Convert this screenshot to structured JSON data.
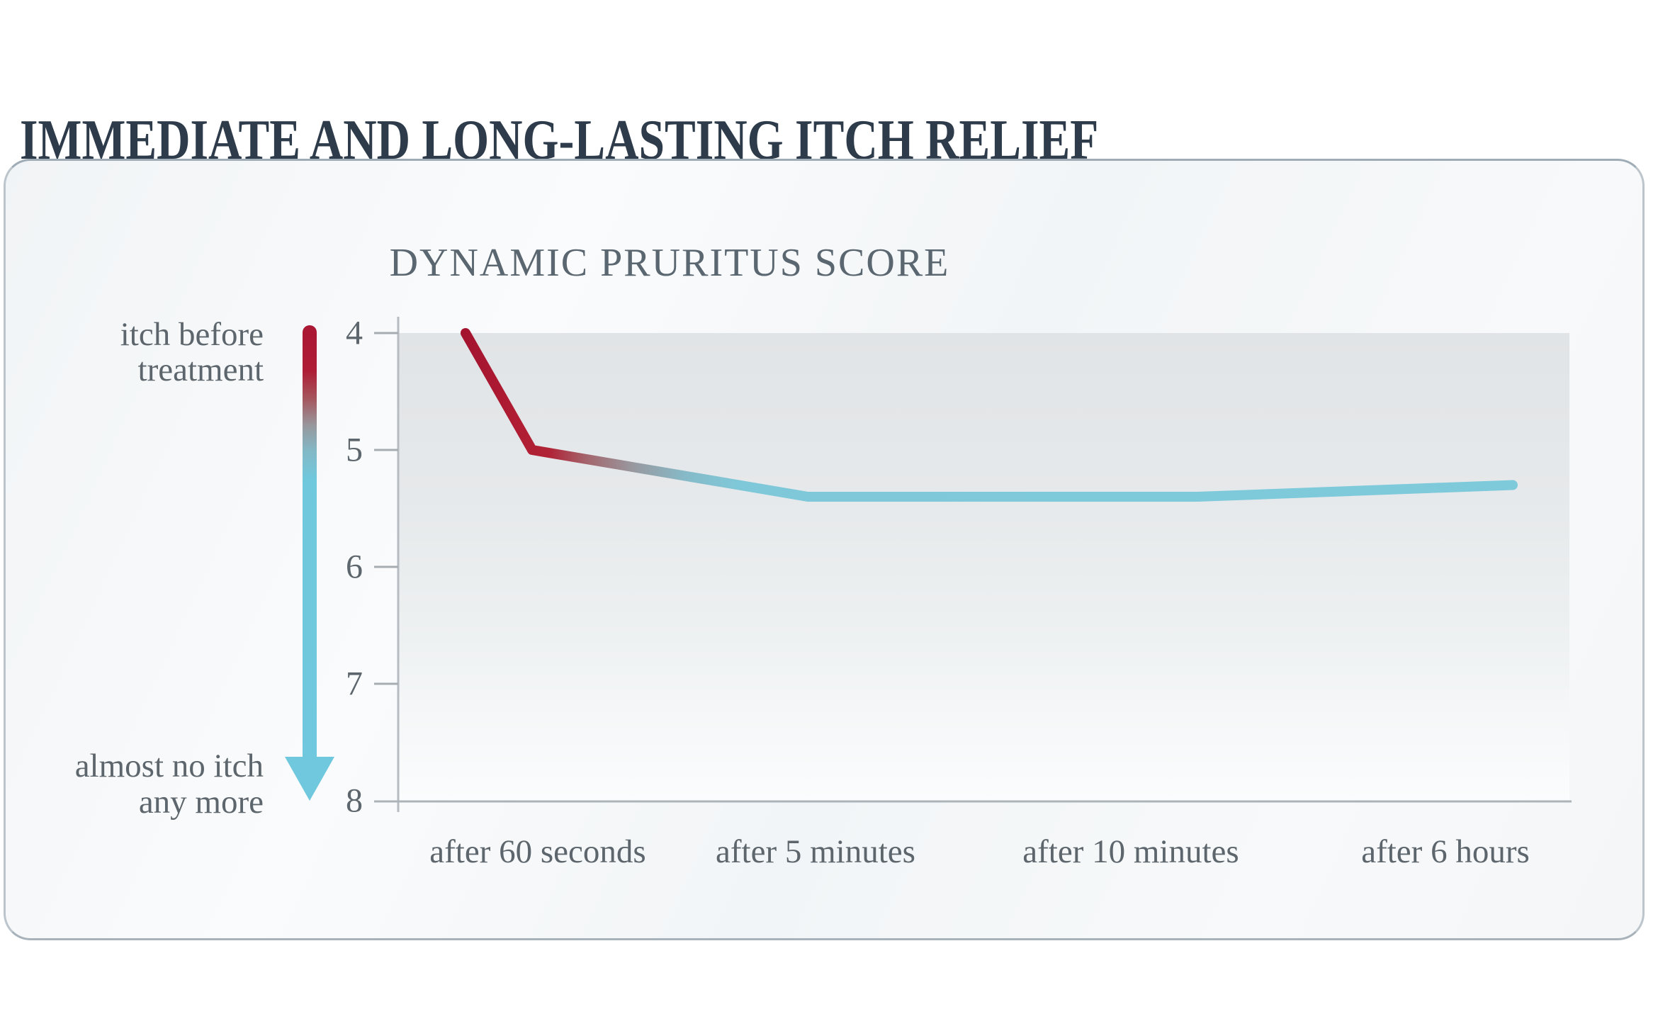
{
  "page": {
    "title": "IMMEDIATE AND LONG-LASTING ITCH RELIEF"
  },
  "chart_data": {
    "type": "line",
    "title": "DYNAMIC PRURITUS SCORE",
    "categories": [
      "after 60 seconds",
      "after 5 minutes",
      "after 10 minutes",
      "after 6 hours"
    ],
    "series": [
      {
        "name": "dynamic pruritus score",
        "points": [
          {
            "label": "before treatment",
            "value": 4.0
          },
          {
            "label": "after 60 seconds",
            "value": 5.0
          },
          {
            "label": "after 5 minutes",
            "value": 5.4
          },
          {
            "label": "after 10 minutes",
            "value": 5.4
          },
          {
            "label": "after 6 hours",
            "value": 5.3
          }
        ]
      }
    ],
    "y_axis": {
      "ticks": [
        "4",
        "5",
        "6",
        "7",
        "8"
      ],
      "min": 4,
      "max": 8,
      "inverted": true
    },
    "annotations": {
      "arrow_top_line1": "itch before",
      "arrow_top_line2": "treatment",
      "arrow_bottom_line1": "almost no itch",
      "arrow_bottom_line2": "any more"
    },
    "layout_hints": {
      "grid": false,
      "legend": "none",
      "shaded_band": true
    },
    "colors": {
      "itch_high_red": "#b01d33",
      "itch_low_cyan": "#7ecadb",
      "band_gray": "#e2e5e7",
      "heading_dark": "#2d3b4a",
      "chart_title_gray": "#5a6670",
      "axis_text_gray": "#5d666c"
    }
  }
}
